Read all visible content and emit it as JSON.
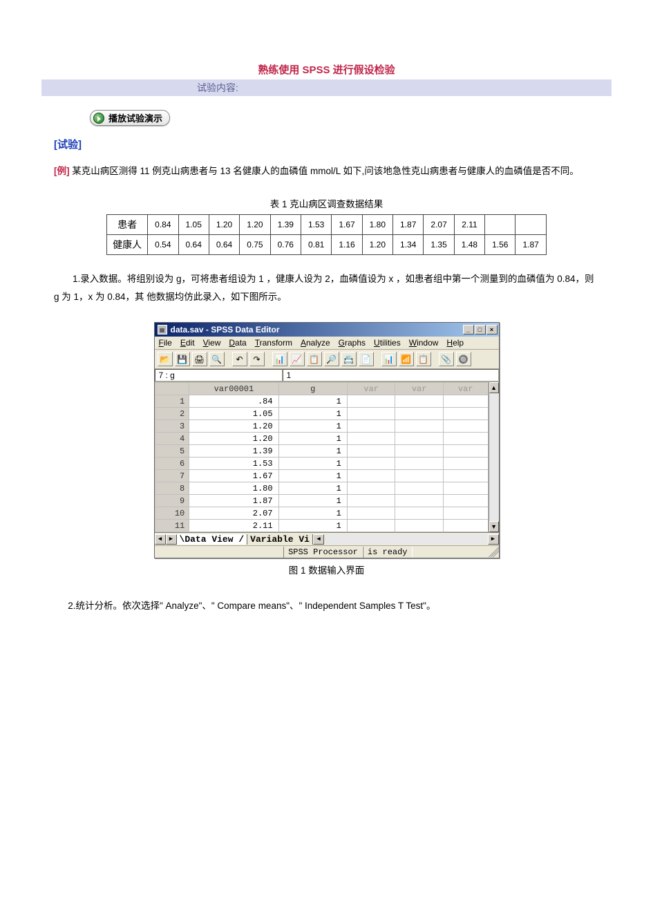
{
  "title_main": "熟练使用 SPSS 进行假设检验",
  "sub_bar": "试验内容:",
  "play_button_label": "播放试验演示",
  "section_label": "[试验]",
  "example": {
    "prefix": "[例]",
    "text": " 某克山病区测得 11 例克山病患者与 13 名健康人的血磷值 mmol/L 如下,问该地急性克山病患者与健康人的血磷值是否不同。"
  },
  "table1": {
    "caption": "表 1  克山病区调查数据结果",
    "row1_label": "患者",
    "row2_label": "健康人",
    "row1": [
      "0.84",
      "1.05",
      "1.20",
      "1.20",
      "1.39",
      "1.53",
      "1.67",
      "1.80",
      "1.87",
      "2.07",
      "2.11",
      "",
      ""
    ],
    "row2": [
      "0.54",
      "0.64",
      "0.64",
      "0.75",
      "0.76",
      "0.81",
      "1.16",
      "1.20",
      "1.34",
      "1.35",
      "1.48",
      "1.56",
      "1.87"
    ]
  },
  "para1": "1.录入数据。将组别设为 g，可将患者组设为 1 ，健康人设为 2，血磷值设为 x ，如患者组中第一个测量到的血磷值为 0.84，则 g 为 1，x 为 0.84，其 他数据均仿此录入，如下图所示。",
  "spss": {
    "window_title": "data.sav - SPSS Data Editor",
    "menus": [
      {
        "u": "F",
        "r": "ile"
      },
      {
        "u": "E",
        "r": "dit"
      },
      {
        "u": "V",
        "r": "iew"
      },
      {
        "u": "D",
        "r": "ata"
      },
      {
        "u": "T",
        "r": "ransform"
      },
      {
        "u": "A",
        "r": "nalyze"
      },
      {
        "u": "G",
        "r": "raphs"
      },
      {
        "u": "U",
        "r": "tilities"
      },
      {
        "u": "W",
        "r": "indow"
      },
      {
        "u": "H",
        "r": "elp"
      }
    ],
    "toolbar_icons": [
      "📂",
      "💾",
      "🖨",
      "🔍",
      "",
      "↶",
      "↷",
      "",
      "📊",
      "📈",
      "📋",
      "🔎",
      "📇",
      "📄",
      "",
      "📊",
      "📶",
      "📋",
      "",
      "📎",
      "🔘"
    ],
    "cell_ref": "7 : g",
    "cell_val": "1",
    "columns": [
      "",
      "var00001",
      "g",
      "var",
      "var",
      "var"
    ],
    "col_active": [
      true,
      true,
      true,
      false,
      false,
      false
    ],
    "col_widths": [
      "50px",
      "130px",
      "100px",
      "70px",
      "70px",
      "65px"
    ],
    "rows": [
      {
        "n": "1",
        "v1": ".84",
        "v2": "1"
      },
      {
        "n": "2",
        "v1": "1.05",
        "v2": "1"
      },
      {
        "n": "3",
        "v1": "1.20",
        "v2": "1"
      },
      {
        "n": "4",
        "v1": "1.20",
        "v2": "1"
      },
      {
        "n": "5",
        "v1": "1.39",
        "v2": "1"
      },
      {
        "n": "6",
        "v1": "1.53",
        "v2": "1"
      },
      {
        "n": "7",
        "v1": "1.67",
        "v2": "1"
      },
      {
        "n": "8",
        "v1": "1.80",
        "v2": "1"
      },
      {
        "n": "9",
        "v1": "1.87",
        "v2": "1"
      },
      {
        "n": "10",
        "v1": "2.07",
        "v2": "1"
      },
      {
        "n": "11",
        "v1": "2.11",
        "v2": "1"
      }
    ],
    "tab1": "Data View",
    "tab2": "Variable Vi",
    "status_left": "SPSS Processor",
    "status_right": "is ready"
  },
  "fig1_caption": "图 1   数据输入界面",
  "para2": "2.统计分析。依次选择\" Analyze\"、\"  Compare  means\"、\"  Independent  Samples  T  Test\"。"
}
